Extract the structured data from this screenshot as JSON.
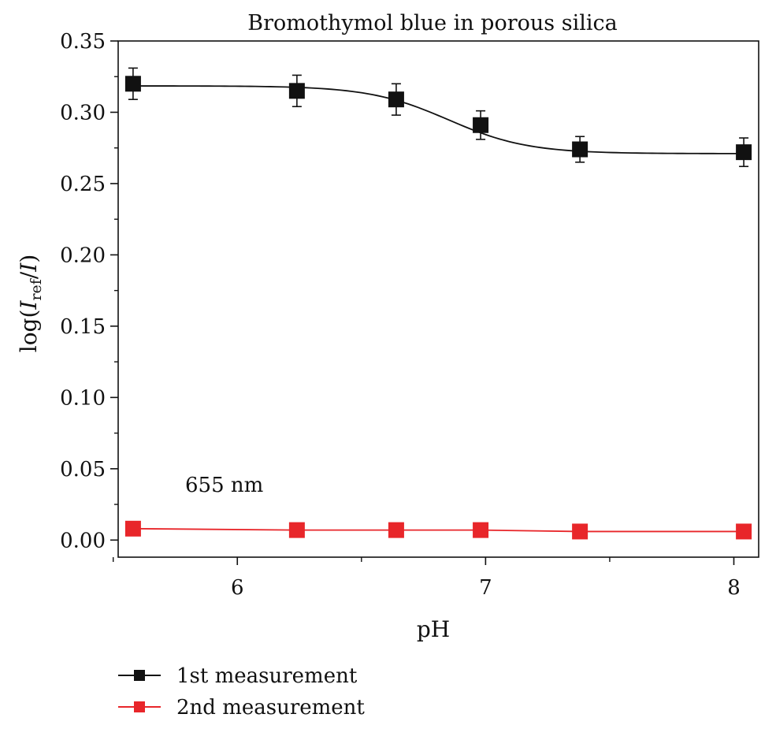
{
  "chart_data": {
    "type": "line",
    "title": "Bromothymol blue in porous silica",
    "xlabel": "pH",
    "ylabel": {
      "prefix": "log(",
      "var1": "I",
      "sub": "ref",
      "slash": "/",
      "var2": "I",
      "suffix": ")"
    },
    "xlim": [
      5.52,
      8.1
    ],
    "ylim": [
      -0.012,
      0.35
    ],
    "x_ticks": [
      6,
      7,
      8
    ],
    "x_tick_labels": [
      "6",
      "7",
      "8"
    ],
    "x_minor_ticks": [
      5.5,
      6.5,
      7.5
    ],
    "y_ticks": [
      0.0,
      0.05,
      0.1,
      0.15,
      0.2,
      0.25,
      0.3,
      0.35
    ],
    "y_tick_labels": [
      "0.00",
      "0.05",
      "0.10",
      "0.15",
      "0.20",
      "0.25",
      "0.30",
      "0.35"
    ],
    "y_minor_ticks": [
      0.025,
      0.075,
      0.125,
      0.175,
      0.225,
      0.275,
      0.325
    ],
    "grid": false,
    "legend_position": "bottom-left, below plot",
    "annotation": "655 nm",
    "series": [
      {
        "name": "1st measurement",
        "color": "#111111",
        "marker": "square",
        "x": [
          5.58,
          6.24,
          6.64,
          6.98,
          7.38,
          8.04
        ],
        "y": [
          0.32,
          0.315,
          0.309,
          0.291,
          0.274,
          0.272
        ],
        "yerr": [
          0.011,
          0.011,
          0.011,
          0.01,
          0.009,
          0.01
        ],
        "fit": "sigmoid",
        "fit_params": {
          "top": 0.3185,
          "bottom": 0.271,
          "center": 6.85,
          "width": 0.16
        }
      },
      {
        "name": "2nd measurement",
        "color": "#e8262a",
        "marker": "square",
        "x": [
          5.58,
          6.24,
          6.64,
          6.98,
          7.38,
          8.04
        ],
        "y": [
          0.008,
          0.007,
          0.007,
          0.007,
          0.006,
          0.006
        ],
        "yerr": [],
        "fit": "line"
      }
    ]
  }
}
